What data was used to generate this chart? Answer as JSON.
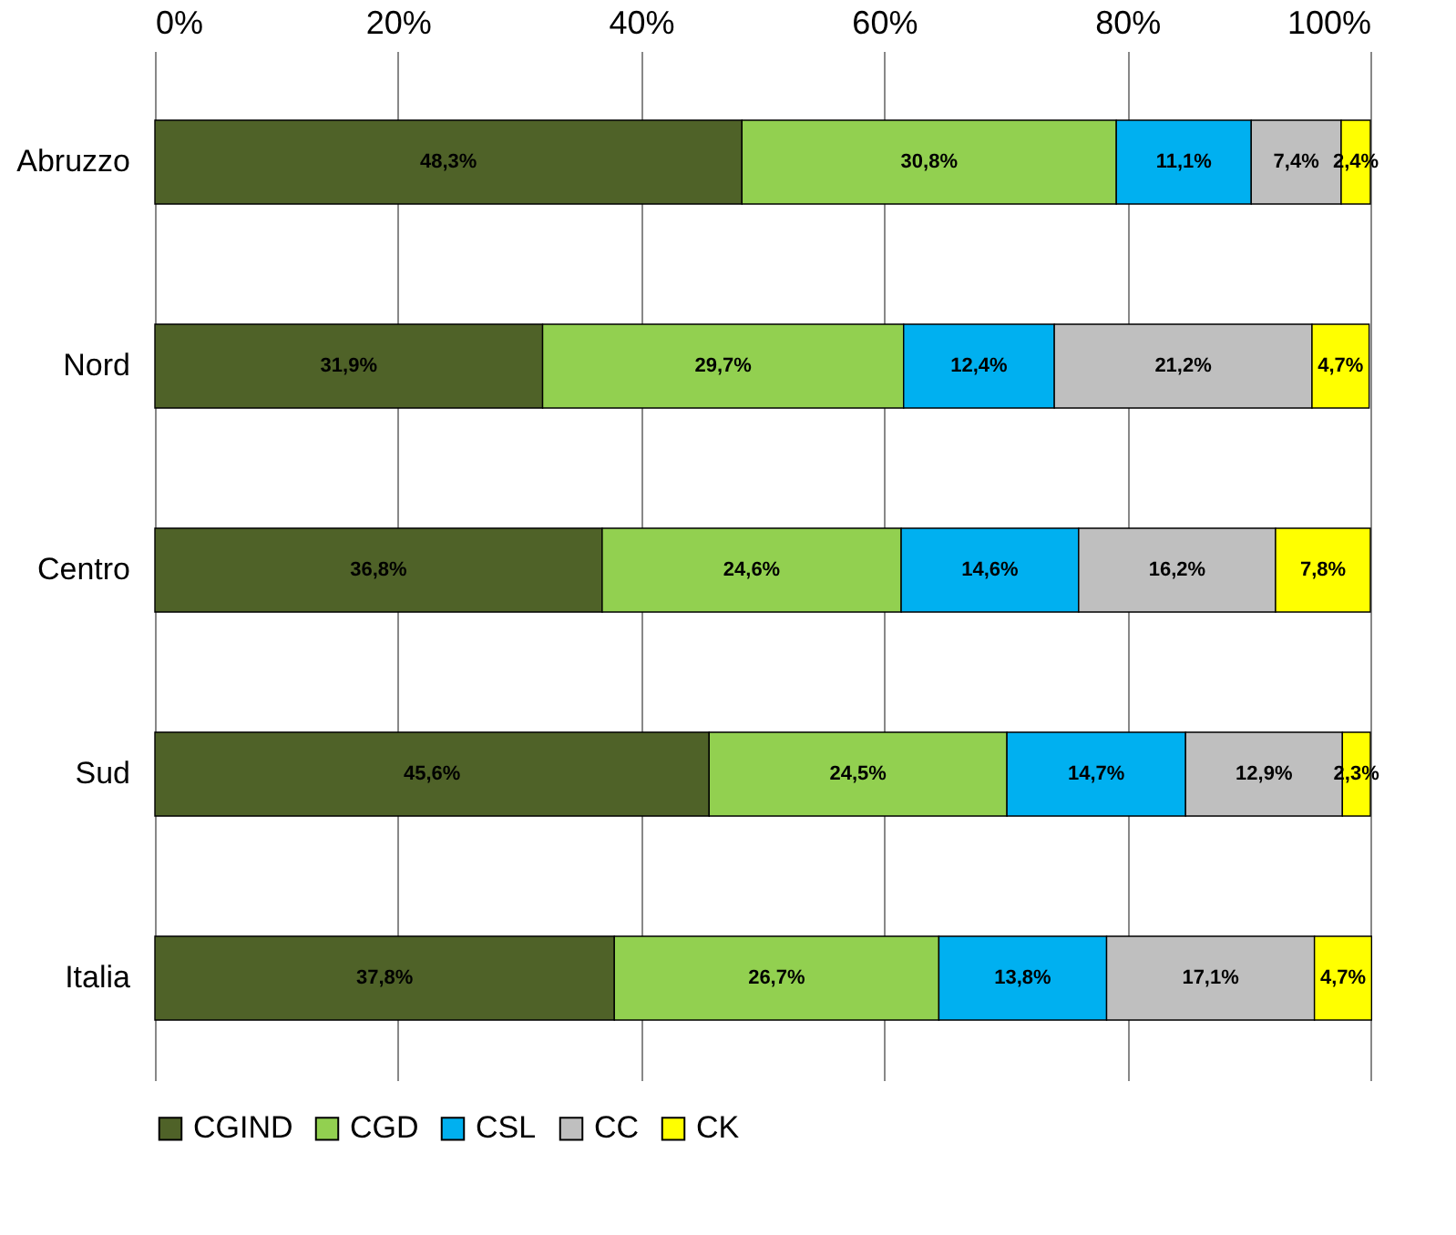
{
  "chart_data": {
    "type": "bar",
    "orientation": "horizontal",
    "stacked": true,
    "categories": [
      "Abruzzo",
      "Nord",
      "Centro",
      "Sud",
      "Italia"
    ],
    "series": [
      {
        "name": "CGIND",
        "color": "#4f6228",
        "values": [
          48.3,
          31.9,
          36.8,
          45.6,
          37.8
        ],
        "value_labels": [
          "48,3%",
          "31,9%",
          "36,8%",
          "45,6%",
          "37,8%"
        ]
      },
      {
        "name": "CGD",
        "color": "#92d050",
        "values": [
          30.8,
          29.7,
          24.6,
          24.5,
          26.7
        ],
        "value_labels": [
          "30,8%",
          "29,7%",
          "24,6%",
          "24,5%",
          "26,7%"
        ]
      },
      {
        "name": "CSL",
        "color": "#00b0f0",
        "values": [
          11.1,
          12.4,
          14.6,
          14.7,
          13.8
        ],
        "value_labels": [
          "11,1%",
          "12,4%",
          "14,6%",
          "14,7%",
          "13,8%"
        ]
      },
      {
        "name": "CC",
        "color": "#bfbfbf",
        "values": [
          7.4,
          21.2,
          16.2,
          12.9,
          17.1
        ],
        "value_labels": [
          "7,4%",
          "21,2%",
          "16,2%",
          "12,9%",
          "17,1%"
        ]
      },
      {
        "name": "CK",
        "color": "#ffff00",
        "values": [
          2.4,
          4.7,
          7.8,
          2.3,
          4.7
        ],
        "value_labels": [
          "2,4%",
          "4,7%",
          "7,8%",
          "2,3%",
          "4,7%"
        ]
      }
    ],
    "xlim": [
      0,
      100
    ],
    "xticks": [
      {
        "value": 0,
        "label": "0%"
      },
      {
        "value": 20,
        "label": "20%"
      },
      {
        "value": 40,
        "label": "40%"
      },
      {
        "value": 60,
        "label": "60%"
      },
      {
        "value": 80,
        "label": "80%"
      },
      {
        "value": 100,
        "label": "100%"
      }
    ],
    "grid": "x",
    "legend": "bottom"
  }
}
